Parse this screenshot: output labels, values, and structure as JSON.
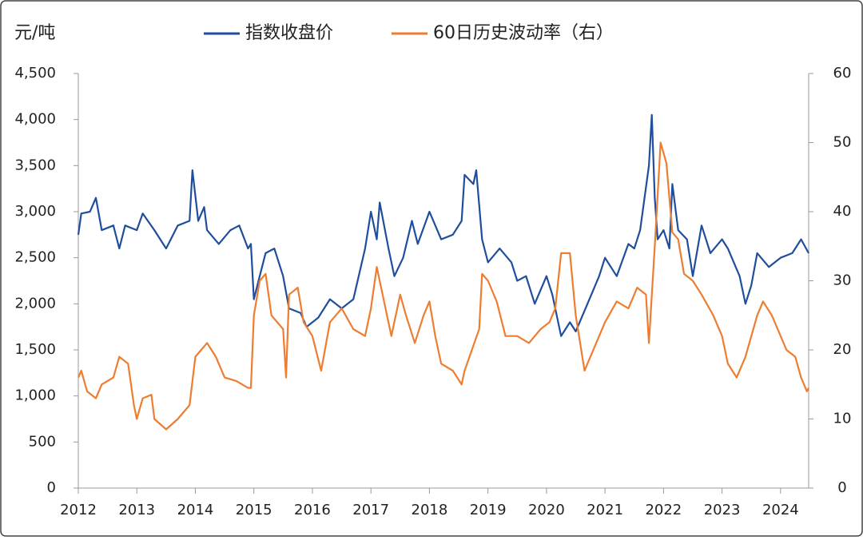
{
  "chart_data": {
    "type": "line",
    "ylabel": "元/吨",
    "xlim": [
      2012,
      2024.48
    ],
    "xticks": [
      2012,
      2013,
      2014,
      2015,
      2016,
      2017,
      2018,
      2019,
      2020,
      2021,
      2022,
      2023,
      2024
    ],
    "ylim": [
      0,
      4500
    ],
    "yticks": [
      0,
      500,
      {
        "value": 1000,
        "label": "1,000"
      },
      {
        "value": 1500,
        "label": "1,500"
      },
      {
        "value": 2000,
        "label": "2,000"
      },
      {
        "value": 2500,
        "label": "2,500"
      },
      {
        "value": 3000,
        "label": "3,000"
      },
      {
        "value": 3500,
        "label": "3,500"
      },
      {
        "value": 4000,
        "label": "4,000"
      },
      {
        "value": 4500,
        "label": "4,500"
      }
    ],
    "y2lim": [
      0,
      60
    ],
    "y2ticks": [
      0,
      10,
      20,
      30,
      40,
      50,
      60
    ],
    "legend": "top",
    "series": [
      {
        "name": "指数收盘价",
        "color": "#1f4e9c",
        "x": [
          2012.0,
          2012.05,
          2012.2,
          2012.3,
          2012.4,
          2012.6,
          2012.7,
          2012.8,
          2013.0,
          2013.1,
          2013.3,
          2013.5,
          2013.7,
          2013.9,
          2013.95,
          2014.05,
          2014.15,
          2014.2,
          2014.4,
          2014.6,
          2014.75,
          2014.9,
          2014.95,
          2015.0,
          2015.1,
          2015.2,
          2015.35,
          2015.5,
          2015.6,
          2015.8,
          2015.9,
          2016.1,
          2016.3,
          2016.5,
          2016.7,
          2016.9,
          2017.0,
          2017.1,
          2017.15,
          2017.3,
          2017.4,
          2017.55,
          2017.7,
          2017.8,
          2018.0,
          2018.2,
          2018.4,
          2018.55,
          2018.6,
          2018.75,
          2018.8,
          2018.9,
          2019.0,
          2019.2,
          2019.4,
          2019.5,
          2019.65,
          2019.8,
          2020.0,
          2020.1,
          2020.25,
          2020.4,
          2020.5,
          2020.7,
          2020.9,
          2021.0,
          2021.2,
          2021.4,
          2021.5,
          2021.6,
          2021.75,
          2021.8,
          2021.85,
          2021.9,
          2022.0,
          2022.1,
          2022.15,
          2022.25,
          2022.4,
          2022.5,
          2022.65,
          2022.8,
          2023.0,
          2023.1,
          2023.3,
          2023.4,
          2023.5,
          2023.6,
          2023.8,
          2024.0,
          2024.2,
          2024.35,
          2024.48
        ],
        "values": [
          2750,
          2980,
          3000,
          3150,
          2800,
          2850,
          2600,
          2850,
          2800,
          2980,
          2800,
          2600,
          2850,
          2900,
          3450,
          2900,
          3050,
          2800,
          2650,
          2800,
          2850,
          2600,
          2650,
          2050,
          2300,
          2550,
          2600,
          2300,
          1950,
          1900,
          1750,
          1850,
          2050,
          1950,
          2050,
          2600,
          3000,
          2700,
          3100,
          2600,
          2300,
          2500,
          2900,
          2650,
          3000,
          2700,
          2750,
          2900,
          3400,
          3300,
          3450,
          2700,
          2450,
          2600,
          2450,
          2250,
          2300,
          2000,
          2300,
          2100,
          1650,
          1800,
          1700,
          2000,
          2300,
          2500,
          2300,
          2650,
          2600,
          2800,
          3500,
          4050,
          3150,
          2700,
          2800,
          2600,
          3300,
          2800,
          2700,
          2300,
          2850,
          2550,
          2700,
          2600,
          2300,
          2000,
          2200,
          2550,
          2400,
          2500,
          2550,
          2700,
          2550
        ]
      },
      {
        "name": "60日历史波动率（右）",
        "color": "#ed7d31",
        "axis": "y2",
        "x": [
          2012.0,
          2012.05,
          2012.15,
          2012.3,
          2012.4,
          2012.6,
          2012.7,
          2012.85,
          2012.95,
          2013.0,
          2013.1,
          2013.25,
          2013.3,
          2013.5,
          2013.7,
          2013.9,
          2014.0,
          2014.1,
          2014.2,
          2014.35,
          2014.5,
          2014.7,
          2014.9,
          2014.95,
          2015.0,
          2015.1,
          2015.2,
          2015.3,
          2015.5,
          2015.55,
          2015.6,
          2015.75,
          2015.85,
          2016.0,
          2016.15,
          2016.3,
          2016.5,
          2016.7,
          2016.9,
          2017.0,
          2017.1,
          2017.2,
          2017.35,
          2017.5,
          2017.6,
          2017.75,
          2017.9,
          2018.0,
          2018.1,
          2018.2,
          2018.4,
          2018.55,
          2018.6,
          2018.85,
          2018.9,
          2019.0,
          2019.15,
          2019.3,
          2019.5,
          2019.7,
          2019.9,
          2020.05,
          2020.15,
          2020.25,
          2020.4,
          2020.5,
          2020.65,
          2020.8,
          2021.0,
          2021.2,
          2021.4,
          2021.55,
          2021.7,
          2021.75,
          2021.85,
          2021.95,
          2022.05,
          2022.15,
          2022.25,
          2022.35,
          2022.5,
          2022.65,
          2022.85,
          2023.0,
          2023.1,
          2023.25,
          2023.4,
          2023.6,
          2023.7,
          2023.85,
          2023.95,
          2024.1,
          2024.25,
          2024.35,
          2024.45,
          2024.48
        ],
        "values": [
          16,
          17,
          14,
          13,
          15,
          16,
          19,
          18,
          12,
          10,
          13,
          13.5,
          10,
          8.5,
          10,
          12,
          19,
          20,
          21,
          19,
          16,
          15.5,
          14.5,
          14.5,
          25,
          30,
          31,
          25,
          23,
          16,
          28,
          29,
          24,
          22,
          17,
          24,
          26,
          23,
          22,
          26,
          32,
          28,
          22,
          28,
          25,
          21,
          25,
          27,
          22,
          18,
          17,
          15,
          17,
          23,
          31,
          30,
          27,
          22,
          22,
          21,
          23,
          24,
          26,
          34,
          34,
          25,
          17,
          20,
          24,
          27,
          26,
          29,
          28,
          21,
          35,
          50,
          47,
          37,
          36,
          31,
          30,
          28,
          25,
          22,
          18,
          16,
          19,
          25,
          27,
          25,
          23,
          20,
          19,
          16,
          14,
          14.5
        ]
      }
    ]
  }
}
